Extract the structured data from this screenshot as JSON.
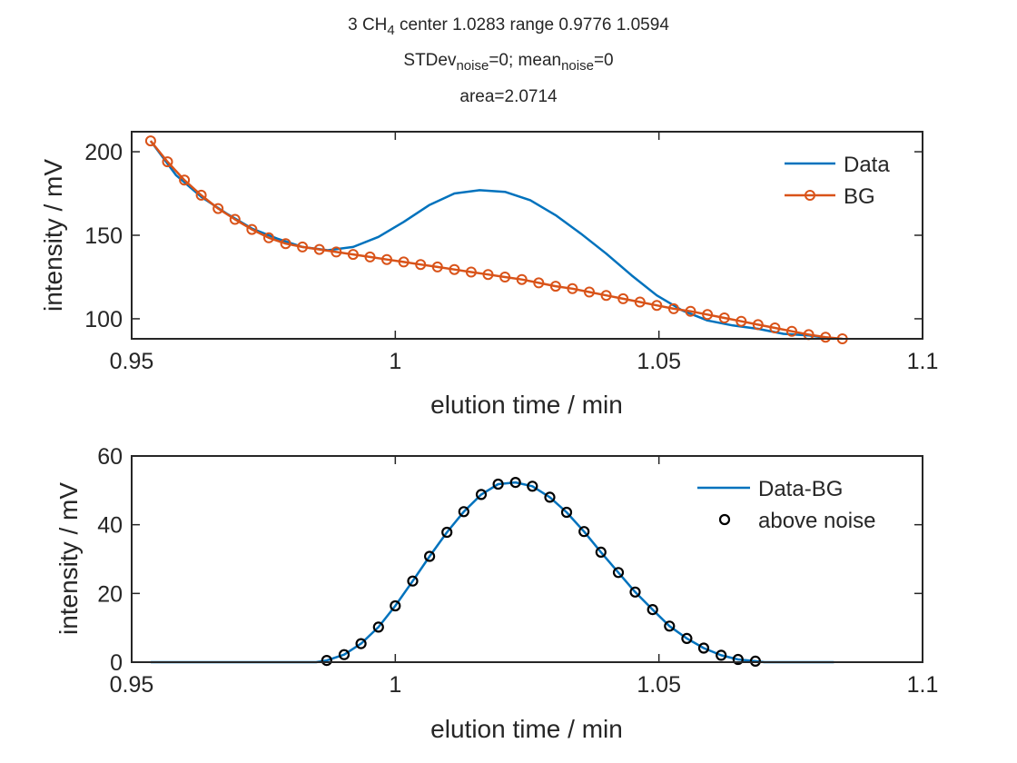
{
  "figure": {
    "title_lines": [
      [
        {
          "t": "3 CH"
        },
        {
          "t": "4",
          "sub": true
        },
        {
          "t": " center 1.0283 range 0.9776 1.0594"
        }
      ],
      [
        {
          "t": "STDev"
        },
        {
          "t": "noise",
          "sub": true
        },
        {
          "t": "=0; mean"
        },
        {
          "t": "noise",
          "sub": true
        },
        {
          "t": "=0"
        }
      ],
      [
        {
          "t": "area=2.0714"
        }
      ]
    ]
  },
  "colors": {
    "data": "#0072BD",
    "bg": "#D95319",
    "points": "#000000",
    "axis": "#262626"
  },
  "chart_data": [
    {
      "type": "line",
      "xlabel": "elution time / min",
      "ylabel": "intensity / mV",
      "xlim": [
        0.95,
        1.1
      ],
      "ylim": [
        88,
        212
      ],
      "xticks": [
        0.95,
        1,
        1.05,
        1.1
      ],
      "xtick_labels": [
        "0.95",
        "1",
        "1.05",
        "1.1"
      ],
      "yticks": [
        100,
        150,
        200
      ],
      "ytick_labels": [
        "100",
        "150",
        "200"
      ],
      "grid": false,
      "legend": {
        "location": "top-right",
        "entries": [
          "Data",
          "BG"
        ]
      },
      "series": [
        {
          "name": "Data",
          "marker": "none",
          "x": [
            0.9536,
            0.9584,
            0.9632,
            0.968,
            0.9728,
            0.9776,
            0.9824,
            0.9872,
            0.992,
            0.9968,
            1.0016,
            1.0064,
            1.0112,
            1.016,
            1.0208,
            1.0256,
            1.0304,
            1.0352,
            1.04,
            1.0448,
            1.0496,
            1.0544,
            1.0592,
            1.064,
            1.0688,
            1.0736,
            1.0784,
            1.0832
          ],
          "y": [
            206.5,
            186,
            173,
            163,
            154,
            148,
            143,
            141,
            143,
            149,
            158,
            168,
            175,
            177,
            176,
            171,
            162,
            151,
            139,
            126,
            114,
            105,
            99,
            96,
            94,
            91,
            90,
            88
          ]
        },
        {
          "name": "BG",
          "marker": "circle",
          "x": [
            0.9536,
            0.9568,
            0.96,
            0.9632,
            0.9664,
            0.9696,
            0.9728,
            0.976,
            0.9792,
            0.9824,
            0.9856,
            0.9888,
            0.992,
            0.9952,
            0.9984,
            1.0016,
            1.0048,
            1.008,
            1.0112,
            1.0144,
            1.0176,
            1.0208,
            1.024,
            1.0272,
            1.0304,
            1.0336,
            1.0368,
            1.04,
            1.0432,
            1.0464,
            1.0496,
            1.0528,
            1.056,
            1.0592,
            1.0624,
            1.0656,
            1.0688,
            1.072,
            1.0752,
            1.0784,
            1.0816,
            1.0848
          ],
          "y": [
            206.5,
            194,
            183,
            174,
            166,
            159.5,
            153.5,
            148.5,
            145,
            143,
            141.5,
            140,
            138.5,
            137,
            135.5,
            134,
            132.5,
            131,
            129.5,
            128,
            126.5,
            125,
            123.5,
            121.5,
            119.5,
            118,
            116,
            114,
            112,
            110,
            108,
            106,
            104.5,
            102.5,
            100.5,
            98.5,
            96.5,
            94.5,
            92.5,
            90.5,
            89,
            88
          ]
        }
      ]
    },
    {
      "type": "line",
      "xlabel": "elution time / min",
      "ylabel": "intensity / mV",
      "xlim": [
        0.95,
        1.1
      ],
      "ylim": [
        0,
        60
      ],
      "xticks": [
        0.95,
        1,
        1.05,
        1.1
      ],
      "xtick_labels": [
        "0.95",
        "1",
        "1.05",
        "1.1"
      ],
      "yticks": [
        0,
        20,
        40,
        60
      ],
      "ytick_labels": [
        "0",
        "20",
        "40",
        "60"
      ],
      "grid": false,
      "legend": {
        "location": "top-right",
        "entries": [
          "Data-BG",
          "above noise"
        ]
      },
      "series": [
        {
          "name": "Data-BG",
          "marker": "none",
          "x": [
            0.9536,
            0.96,
            0.97,
            0.98,
            0.985,
            0.987,
            0.9903,
            0.9935,
            0.9968,
            1.0,
            1.0033,
            1.0065,
            1.0098,
            1.013,
            1.0163,
            1.0195,
            1.0228,
            1.026,
            1.0293,
            1.0325,
            1.0358,
            1.039,
            1.0423,
            1.0455,
            1.0488,
            1.052,
            1.0553,
            1.0585,
            1.0618,
            1.065,
            1.0683,
            1.07,
            1.076,
            1.0832
          ],
          "y": [
            0,
            0,
            0,
            0,
            0,
            0.5,
            2.2,
            5.4,
            10.2,
            16.4,
            23.6,
            30.8,
            37.8,
            43.8,
            48.8,
            51.8,
            52.3,
            51.2,
            48,
            43.6,
            38,
            32,
            26.1,
            20.4,
            15.3,
            10.5,
            6.9,
            4.1,
            2.0,
            0.8,
            0.3,
            0,
            0,
            0
          ]
        },
        {
          "name": "above noise",
          "marker": "circle",
          "x": [
            0.987,
            0.9903,
            0.9935,
            0.9968,
            1.0,
            1.0033,
            1.0065,
            1.0098,
            1.013,
            1.0163,
            1.0195,
            1.0228,
            1.026,
            1.0293,
            1.0325,
            1.0358,
            1.039,
            1.0423,
            1.0455,
            1.0488,
            1.052,
            1.0553,
            1.0585,
            1.0618,
            1.065,
            1.0683
          ],
          "y": [
            0.5,
            2.2,
            5.4,
            10.2,
            16.4,
            23.6,
            30.8,
            37.8,
            43.8,
            48.8,
            51.8,
            52.3,
            51.2,
            48,
            43.6,
            38,
            32,
            26.1,
            20.4,
            15.3,
            10.5,
            6.9,
            4.1,
            2.0,
            0.8,
            0.3
          ]
        }
      ]
    }
  ]
}
